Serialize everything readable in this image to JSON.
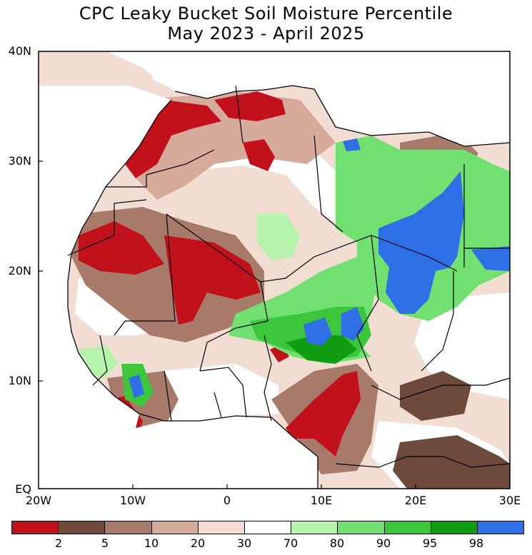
{
  "title": {
    "line1": "CPC Leaky Bucket Soil Moisture Percentile",
    "line2": "May 2023 - April 2025"
  },
  "axes": {
    "lat_labels": [
      "40N",
      "30N",
      "20N",
      "10N",
      "EQ"
    ],
    "lon_labels": [
      "20W",
      "10W",
      "0",
      "10E",
      "20E",
      "30E"
    ]
  },
  "legend": {
    "colors": [
      "#c1121b",
      "#6e4a3c",
      "#a87a6a",
      "#d7ab9c",
      "#f2ddd3",
      "#ffffff",
      "#b6f4ae",
      "#71e071",
      "#3cc63c",
      "#119d11",
      "#2f6fe6"
    ],
    "labels": [
      "2",
      "5",
      "10",
      "20",
      "30",
      "70",
      "80",
      "90",
      "95",
      "98"
    ]
  },
  "palette": {
    "ocean": "#ffffff",
    "coast": "#000000",
    "dry_extreme": "#c1121b",
    "wet_extreme": "#2f6fe6"
  }
}
